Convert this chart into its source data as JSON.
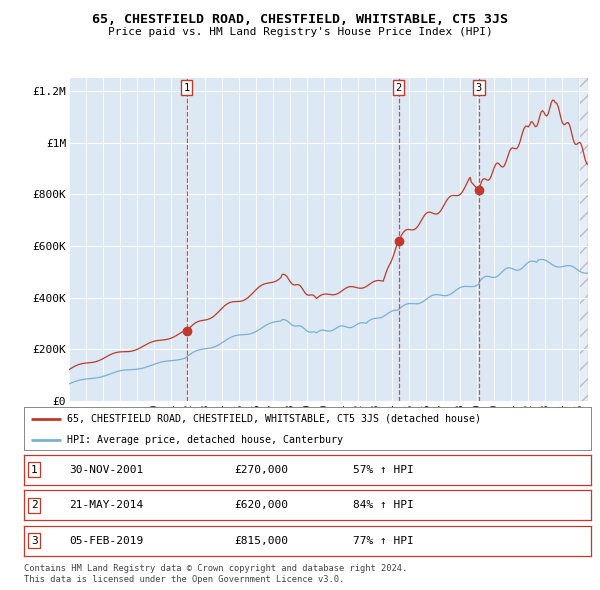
{
  "title": "65, CHESTFIELD ROAD, CHESTFIELD, WHITSTABLE, CT5 3JS",
  "subtitle": "Price paid vs. HM Land Registry's House Price Index (HPI)",
  "bg_color": "#dce9f5",
  "red_line_color": "#c0392b",
  "blue_line_color": "#7ab0d4",
  "red_line_label": "65, CHESTFIELD ROAD, CHESTFIELD, WHITSTABLE, CT5 3JS (detached house)",
  "blue_line_label": "HPI: Average price, detached house, Canterbury",
  "sale_t": [
    2001.917,
    2014.375,
    2019.083
  ],
  "sale_prices": [
    270000,
    620000,
    815000
  ],
  "sale_labels": [
    "1",
    "2",
    "3"
  ],
  "sale_info": [
    [
      "1",
      "30-NOV-2001",
      "£270,000",
      "57% ↑ HPI"
    ],
    [
      "2",
      "21-MAY-2014",
      "£620,000",
      "84% ↑ HPI"
    ],
    [
      "3",
      "05-FEB-2019",
      "£815,000",
      "77% ↑ HPI"
    ]
  ],
  "footer1": "Contains HM Land Registry data © Crown copyright and database right 2024.",
  "footer2": "This data is licensed under the Open Government Licence v3.0.",
  "ylim": [
    0,
    1250000
  ],
  "yticks": [
    0,
    200000,
    400000,
    600000,
    800000,
    1000000,
    1200000
  ],
  "ytick_labels": [
    "£0",
    "£200K",
    "£400K",
    "£600K",
    "£800K",
    "£1M",
    "£1.2M"
  ],
  "xlim": [
    1995,
    2025.5
  ],
  "grid_color": "#ffffff",
  "vline_color": "#cc3333",
  "hatch_color": "#cccccc"
}
